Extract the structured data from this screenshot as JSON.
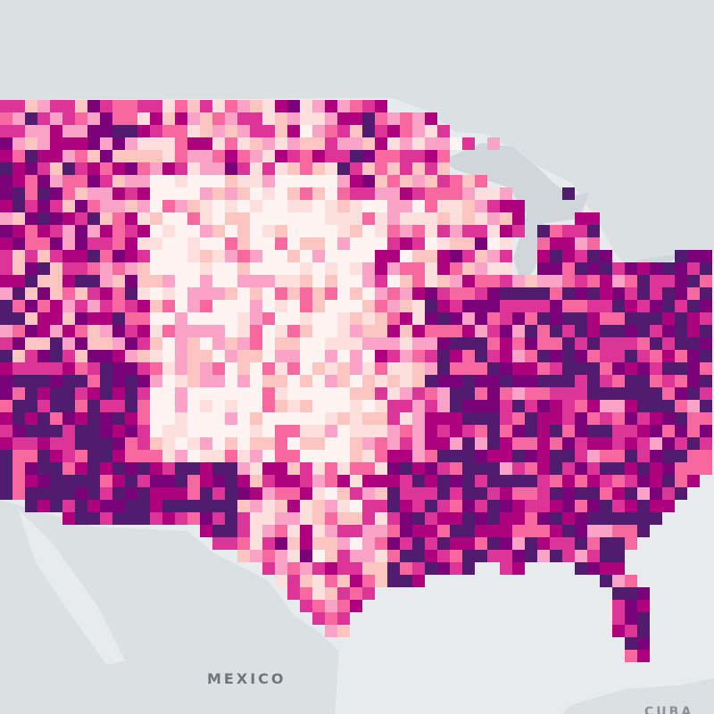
{
  "map": {
    "labels": {
      "mexico": "MEXICO",
      "cuba_partial": "CUBA"
    },
    "colors": {
      "ocean": "#e7ebed",
      "land": "#d9dfe2",
      "lakes": "#cfd7dc",
      "choropleth_scale": [
        "#fff4f1",
        "#fde0dd",
        "#fcc5c0",
        "#f9a3c8",
        "#f768a1",
        "#dd3497",
        "#ae017e",
        "#7a0177",
        "#4f1c6e"
      ]
    }
  }
}
